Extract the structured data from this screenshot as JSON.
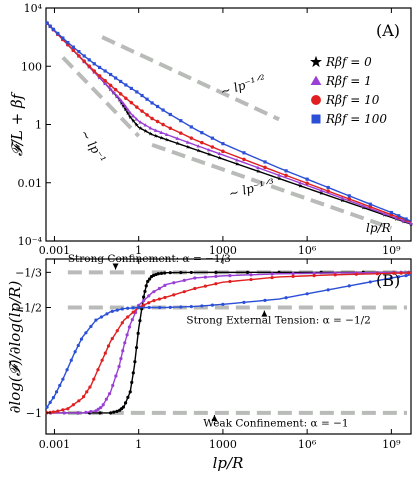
{
  "chart_data": [
    {
      "panel": "(A)",
      "type": "line",
      "ylabel": "𝓕/L + βf",
      "xlabel_inset": "lp/R",
      "x_scale": "log",
      "y_scale": "log",
      "xlim": [
        0.0005,
        5000000000
      ],
      "ylim": [
        0.0001,
        10000
      ],
      "x_ticks": [
        0.001,
        1,
        1000,
        1000000,
        1000000000
      ],
      "x_tick_labels": [
        "0.001",
        "1",
        "1000",
        "10⁶",
        "10⁹"
      ],
      "y_ticks": [
        0.0001,
        0.01,
        1,
        100,
        10000
      ],
      "y_tick_labels": [
        "10⁻⁴",
        "0.01",
        "1",
        "100",
        "10⁴"
      ],
      "legend_position": "right",
      "series": [
        {
          "name": "Rβf = 0",
          "color": "#000000",
          "marker": "star",
          "x": [
            0.0005,
            0.001,
            0.003,
            0.01,
            0.03,
            0.1,
            0.2,
            0.3,
            0.5,
            1,
            3,
            10,
            100,
            1000,
            100000,
            10000000,
            1000000000,
            5000000000
          ],
          "y": [
            3300,
            1650,
            550,
            165,
            55,
            16,
            7.5,
            4,
            1.8,
            0.8,
            0.45,
            0.3,
            0.14,
            0.065,
            0.014,
            0.003,
            0.00065,
            0.00038
          ]
        },
        {
          "name": "Rβf = 1",
          "color": "#9a3fd6",
          "marker": "triangle",
          "x": [
            0.0005,
            0.001,
            0.003,
            0.01,
            0.03,
            0.1,
            0.2,
            0.3,
            0.5,
            1,
            3,
            10,
            100,
            1000,
            100000,
            10000000,
            1000000000,
            5000000000
          ],
          "y": [
            3300,
            1650,
            550,
            165,
            55,
            16.5,
            8,
            5,
            2.5,
            1.3,
            0.7,
            0.45,
            0.2,
            0.09,
            0.018,
            0.0036,
            0.0007,
            0.0004
          ]
        },
        {
          "name": "Rβf = 10",
          "color": "#e02020",
          "marker": "circle",
          "x": [
            0.0005,
            0.001,
            0.003,
            0.01,
            0.03,
            0.1,
            0.3,
            1,
            3,
            10,
            100,
            1000,
            100000,
            10000000,
            1000000000,
            5000000000
          ],
          "y": [
            3300,
            1650,
            550,
            170,
            60,
            22,
            9,
            3.5,
            1.6,
            0.85,
            0.3,
            0.12,
            0.022,
            0.0042,
            0.0008,
            0.00045
          ]
        },
        {
          "name": "Rβf = 100",
          "color": "#2b4fd6",
          "marker": "square",
          "x": [
            0.0005,
            0.001,
            0.003,
            0.01,
            0.03,
            0.1,
            0.3,
            1,
            3,
            10,
            100,
            1000,
            100000,
            10000000,
            1000000000,
            5000000000
          ],
          "y": [
            3300,
            1700,
            650,
            250,
            110,
            52,
            25,
            12,
            5.5,
            2.6,
            0.7,
            0.22,
            0.032,
            0.0055,
            0.00095,
            0.00048
          ]
        }
      ],
      "guides": [
        {
          "label": "∼ lp⁻¹",
          "x": [
            0.002,
            1
          ],
          "y": [
            200,
            0.4
          ]
        },
        {
          "label": "∼ lp⁻¹ᐟ²",
          "x": [
            0.05,
            100000
          ],
          "y": [
            1000,
            1.5
          ]
        },
        {
          "label": "∼ lp⁻¹ᐟ³",
          "x": [
            3,
            1000000000
          ],
          "y": [
            0.2,
            0.00028
          ]
        }
      ]
    },
    {
      "panel": "(B)",
      "type": "line",
      "ylabel": "∂log(𝓕)/∂log(lp/R)",
      "xlabel": "lp/R",
      "x_scale": "log",
      "xlim": [
        0.0005,
        5000000000
      ],
      "ylim": [
        -1.1,
        -0.27
      ],
      "x_ticks": [
        0.001,
        1,
        1000,
        1000000,
        1000000000
      ],
      "x_tick_labels": [
        "0.001",
        "1",
        "1000",
        "10⁶",
        "10⁹"
      ],
      "y_ticks": [
        -1,
        -0.5,
        -0.3333
      ],
      "y_tick_labels": [
        "−1",
        "−1/2",
        "−1/3"
      ],
      "series": [
        {
          "name": "Rβf = 0",
          "color": "#000000",
          "x": [
            0.0005,
            0.01,
            0.1,
            0.2,
            0.3,
            0.5,
            0.7,
            1,
            1.5,
            2,
            3,
            5,
            10,
            100,
            100000,
            1000000000,
            5000000000
          ],
          "y": [
            -1,
            -1,
            -1,
            -0.99,
            -0.97,
            -0.9,
            -0.78,
            -0.6,
            -0.45,
            -0.38,
            -0.35,
            -0.34,
            -0.335,
            -0.3335,
            -0.3333,
            -0.3333,
            -0.3333
          ]
        },
        {
          "name": "Rβf = 1",
          "color": "#9a3fd6",
          "x": [
            0.0005,
            0.01,
            0.03,
            0.05,
            0.1,
            0.2,
            0.3,
            0.5,
            1,
            3,
            10,
            100,
            1000,
            100000,
            10000000,
            1000000000,
            5000000000
          ],
          "y": [
            -1,
            -1,
            -0.99,
            -0.97,
            -0.9,
            -0.78,
            -0.68,
            -0.58,
            -0.49,
            -0.43,
            -0.39,
            -0.36,
            -0.35,
            -0.34,
            -0.336,
            -0.334,
            -0.3335
          ]
        },
        {
          "name": "Rβf = 10",
          "color": "#e02020",
          "x": [
            0.0005,
            0.001,
            0.003,
            0.01,
            0.02,
            0.05,
            0.1,
            0.3,
            1,
            3,
            10,
            100,
            1000,
            100000,
            10000000,
            1000000000,
            5000000000
          ],
          "y": [
            -1,
            -0.995,
            -0.98,
            -0.93,
            -0.87,
            -0.75,
            -0.66,
            -0.56,
            -0.5,
            -0.47,
            -0.45,
            -0.41,
            -0.38,
            -0.355,
            -0.345,
            -0.338,
            -0.336
          ]
        },
        {
          "name": "Rβf = 100",
          "color": "#2b4fd6",
          "x": [
            0.0005,
            0.001,
            0.002,
            0.005,
            0.01,
            0.03,
            0.1,
            0.3,
            1,
            10,
            100,
            1000,
            100000,
            10000000,
            1000000000,
            5000000000
          ],
          "y": [
            -0.98,
            -0.92,
            -0.84,
            -0.72,
            -0.64,
            -0.56,
            -0.52,
            -0.505,
            -0.5,
            -0.5,
            -0.495,
            -0.485,
            -0.46,
            -0.41,
            -0.36,
            -0.345
          ]
        }
      ],
      "guides": [
        {
          "y": -0.3333
        },
        {
          "y": -0.5
        },
        {
          "y": -1
        }
      ],
      "annotations": [
        {
          "text": "Strong Confinement: α = −1/3",
          "x": 0.003,
          "y": -0.285,
          "arrow_to": [
            0.15,
            -0.32
          ]
        },
        {
          "text": "Strong External Tension: α = −1/2",
          "x": 50,
          "y": -0.575,
          "arrow_to": [
            30000,
            -0.515
          ]
        },
        {
          "text": "Weak Confinement:  α = −1",
          "x": 200,
          "y": -1.065,
          "arrow_to": [
            500,
            -1.01
          ]
        }
      ]
    }
  ]
}
